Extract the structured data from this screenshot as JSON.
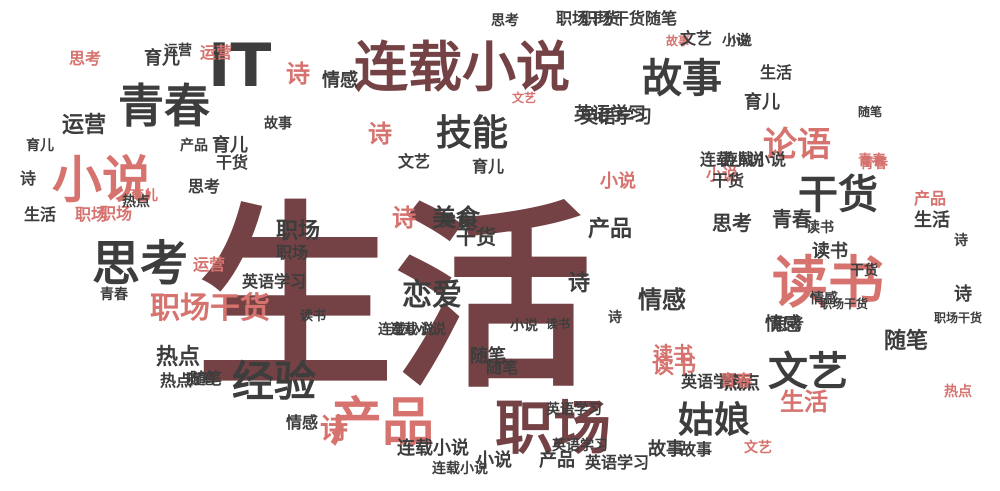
{
  "word_cloud": {
    "palette": {
      "maroon": "#744245",
      "charcoal": "#3d3d3d",
      "salmon": "#d6736f",
      "background": "#ffffff"
    },
    "words": [
      {
        "text": "生活",
        "color": "maroon",
        "rotated": false
      },
      {
        "text": "IT",
        "color": "charcoal",
        "rotated": false
      },
      {
        "text": "连载小说",
        "color": "maroon",
        "rotated": false
      },
      {
        "text": "青春",
        "color": "charcoal",
        "rotated": false
      },
      {
        "text": "小说",
        "color": "salmon",
        "rotated": false
      },
      {
        "text": "思考",
        "color": "charcoal",
        "rotated": false
      },
      {
        "text": "故事",
        "color": "charcoal",
        "rotated": false
      },
      {
        "text": "技能",
        "color": "charcoal",
        "rotated": false
      },
      {
        "text": "论语",
        "color": "salmon",
        "rotated": false
      },
      {
        "text": "干货",
        "color": "charcoal",
        "rotated": false
      },
      {
        "text": "读书",
        "color": "salmon",
        "rotated": false
      },
      {
        "text": "文艺",
        "color": "charcoal",
        "rotated": false
      },
      {
        "text": "产品",
        "color": "salmon",
        "rotated": false
      },
      {
        "text": "职场",
        "color": "maroon",
        "rotated": false
      },
      {
        "text": "姑娘",
        "color": "charcoal",
        "rotated": false
      },
      {
        "text": "经验",
        "color": "charcoal",
        "rotated": false
      },
      {
        "text": "职场干货",
        "color": "salmon",
        "rotated": false
      },
      {
        "text": "恋爱",
        "color": "charcoal",
        "rotated": false
      },
      {
        "text": "情感",
        "color": "charcoal",
        "rotated": false
      },
      {
        "text": "美食",
        "color": "charcoal",
        "rotated": false
      },
      {
        "text": "运营",
        "color": "charcoal",
        "rotated": false
      },
      {
        "text": "诗",
        "color": "salmon",
        "rotated": false
      },
      {
        "text": "诗",
        "color": "salmon",
        "rotated": false
      },
      {
        "text": "诗",
        "color": "salmon",
        "rotated": false
      },
      {
        "text": "诗",
        "color": "salmon",
        "rotated": false
      },
      {
        "text": "育儿",
        "color": "charcoal",
        "rotated": false
      },
      {
        "text": "育儿",
        "color": "charcoal",
        "rotated": false
      },
      {
        "text": "情感",
        "color": "charcoal",
        "rotated": false
      },
      {
        "text": "热点",
        "color": "charcoal",
        "rotated": false
      },
      {
        "text": "随笔",
        "color": "charcoal",
        "rotated": false
      },
      {
        "text": "生活",
        "color": "salmon",
        "rotated": false
      },
      {
        "text": "小说",
        "color": "salmon",
        "rotated": false
      },
      {
        "text": "职场",
        "color": "charcoal",
        "rotated": false
      },
      {
        "text": "干货",
        "color": "charcoal",
        "rotated": false
      },
      {
        "text": "思考",
        "color": "charcoal",
        "rotated": false
      },
      {
        "text": "青春",
        "color": "charcoal",
        "rotated": false
      },
      {
        "text": "读书",
        "color": "salmon",
        "rotated": false
      },
      {
        "text": "产品",
        "color": "charcoal",
        "rotated": false
      },
      {
        "text": "英语学习",
        "color": "charcoal",
        "rotated": false
      },
      {
        "text": "连载小说",
        "color": "charcoal",
        "rotated": false
      },
      {
        "text": "热点",
        "color": "charcoal",
        "rotated": false
      },
      {
        "text": "故事",
        "color": "charcoal",
        "rotated": false
      },
      {
        "text": "故事",
        "color": "charcoal",
        "rotated": false
      },
      {
        "text": "思考",
        "color": "charcoal",
        "rotated": false
      },
      {
        "text": "运营",
        "color": "salmon",
        "rotated": false
      },
      {
        "text": "育儿",
        "color": "charcoal",
        "rotated": false
      },
      {
        "text": "文艺",
        "color": "charcoal",
        "rotated": false
      },
      {
        "text": "育儿",
        "color": "charcoal",
        "rotated": false
      },
      {
        "text": "诗",
        "color": "charcoal",
        "rotated": false
      },
      {
        "text": "诗",
        "color": "charcoal",
        "rotated": false
      },
      {
        "text": "随笔",
        "color": "charcoal",
        "rotated": false
      },
      {
        "text": "生活",
        "color": "charcoal",
        "rotated": false
      },
      {
        "text": "读书",
        "color": "charcoal",
        "rotated": false
      },
      {
        "text": "职场干货",
        "color": "charcoal",
        "rotated": false
      },
      {
        "text": "随笔",
        "color": "charcoal",
        "rotated": false
      },
      {
        "text": "小说",
        "color": "charcoal",
        "rotated": false
      },
      {
        "text": "青春",
        "color": "charcoal",
        "rotated": false
      },
      {
        "text": "热点",
        "color": "charcoal",
        "rotated": false
      },
      {
        "text": "随笔",
        "color": "charcoal",
        "rotated": false
      },
      {
        "text": "情感",
        "color": "charcoal",
        "rotated": false
      },
      {
        "text": "产品",
        "color": "charcoal",
        "rotated": false
      },
      {
        "text": "英语学习",
        "color": "charcoal",
        "rotated": false
      },
      {
        "text": "连载小说",
        "color": "charcoal",
        "rotated": false
      },
      {
        "text": "小说",
        "color": "charcoal",
        "rotated": false
      },
      {
        "text": "思考",
        "color": "charcoal",
        "rotated": false
      },
      {
        "text": "职场干货随笔",
        "color": "charcoal",
        "rotated": false
      },
      {
        "text": "文艺",
        "color": "salmon",
        "rotated": false
      },
      {
        "text": "英语学习",
        "color": "charcoal",
        "rotated": false
      },
      {
        "text": "故事",
        "color": "salmon",
        "rotated": false
      },
      {
        "text": "干货",
        "color": "charcoal",
        "rotated": false
      },
      {
        "text": "运营",
        "color": "salmon",
        "rotated": false
      },
      {
        "text": "职场",
        "color": "salmon",
        "rotated": false
      },
      {
        "text": "干货",
        "color": "charcoal",
        "rotated": false
      },
      {
        "text": "英语学习",
        "color": "charcoal",
        "rotated": false
      },
      {
        "text": "青春",
        "color": "salmon",
        "rotated": false
      },
      {
        "text": "思考",
        "color": "salmon",
        "rotated": false
      },
      {
        "text": "连载小说",
        "color": "charcoal",
        "rotated": false
      },
      {
        "text": "读书",
        "color": "salmon",
        "rotated": false
      },
      {
        "text": "英语学习",
        "color": "charcoal",
        "rotated": false
      },
      {
        "text": "小说",
        "color": "charcoal",
        "rotated": false
      },
      {
        "text": "诗",
        "color": "charcoal",
        "rotated": false
      },
      {
        "text": "热点",
        "color": "charcoal",
        "rotated": false
      },
      {
        "text": "产品",
        "color": "salmon",
        "rotated": false
      },
      {
        "text": "情感",
        "color": "charcoal",
        "rotated": false
      },
      {
        "text": "职场",
        "color": "salmon",
        "rotated": false
      },
      {
        "text": "连载小说",
        "color": "charcoal",
        "rotated": false
      },
      {
        "text": "故事",
        "color": "charcoal",
        "rotated": false
      },
      {
        "text": "文艺",
        "color": "salmon",
        "rotated": false
      },
      {
        "text": "青春",
        "color": "salmon",
        "rotated": false
      },
      {
        "text": "读书",
        "color": "charcoal",
        "rotated": false
      },
      {
        "text": "思考",
        "color": "charcoal",
        "rotated": false
      },
      {
        "text": "生活",
        "color": "charcoal",
        "rotated": false
      },
      {
        "text": "美食",
        "color": "charcoal",
        "rotated": false
      },
      {
        "text": "育儿",
        "color": "salmon",
        "rotated": false
      },
      {
        "text": "青春",
        "color": "salmon",
        "rotated": false
      },
      {
        "text": "文艺",
        "color": "charcoal",
        "rotated": false
      },
      {
        "text": "小说",
        "color": "salmon",
        "rotated": false
      },
      {
        "text": "职场干货",
        "color": "charcoal",
        "rotated": false
      },
      {
        "text": "英语学习",
        "color": "charcoal",
        "rotated": false
      },
      {
        "text": "运营",
        "color": "charcoal",
        "rotated": false
      },
      {
        "text": "干货",
        "color": "charcoal",
        "rotated": false
      },
      {
        "text": "读书",
        "color": "charcoal",
        "rotated": false
      },
      {
        "text": "随笔",
        "color": "charcoal",
        "rotated": false
      },
      {
        "text": "热点",
        "color": "charcoal",
        "rotated": false
      },
      {
        "text": "生活",
        "color": "charcoal",
        "rotated": false
      },
      {
        "text": "情感",
        "color": "charcoal",
        "rotated": false
      },
      {
        "text": "英语学习",
        "color": "charcoal",
        "rotated": false
      },
      {
        "text": "诗",
        "color": "charcoal",
        "rotated": false
      },
      {
        "text": "职场",
        "color": "charcoal",
        "rotated": false
      },
      {
        "text": "小说",
        "color": "charcoal",
        "rotated": false
      },
      {
        "text": "连载小说",
        "color": "charcoal",
        "rotated": false
      },
      {
        "text": "职场干货",
        "color": "charcoal",
        "rotated": false
      },
      {
        "text": "育儿",
        "color": "charcoal",
        "rotated": false
      },
      {
        "text": "产品",
        "color": "charcoal",
        "rotated": false
      },
      {
        "text": "热点",
        "color": "salmon",
        "rotated": false
      },
      {
        "text": "随笔",
        "color": "charcoal",
        "rotated": false
      },
      {
        "text": "读书",
        "color": "charcoal",
        "rotated": false
      },
      {
        "text": "连载小说",
        "color": "charcoal",
        "rotated": false
      },
      {
        "text": "诗",
        "color": "charcoal",
        "rotated": false
      }
    ]
  }
}
